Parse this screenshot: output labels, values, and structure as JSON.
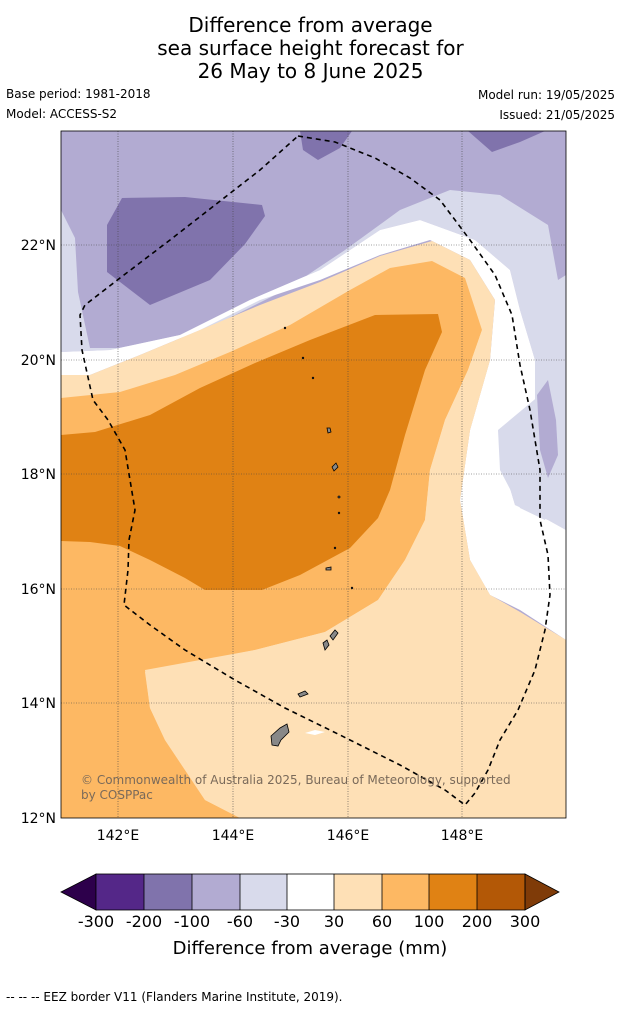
{
  "title": {
    "line1": "Difference from average",
    "line2": "sea surface height forecast for",
    "line3": "26 May to 8 June 2025"
  },
  "meta": {
    "base_period": "Base period: 1981-2018",
    "model": "Model: ACCESS-S2",
    "model_run": "Model run: 19/05/2025",
    "issued": "Issued: 21/05/2025"
  },
  "map": {
    "lat_labels": [
      "22°N",
      "20°N",
      "18°N",
      "16°N",
      "14°N",
      "12°N"
    ],
    "lon_labels": [
      "142°E",
      "144°E",
      "146°E",
      "148°E"
    ],
    "copyright_line1": "© Commonwealth of Australia 2025, Bureau of Meteorology, supported",
    "copyright_line2": "by COSPPac"
  },
  "colorbar": {
    "ticks": [
      "-300",
      "-200",
      "-100",
      "-60",
      "-30",
      "30",
      "60",
      "100",
      "200",
      "300"
    ],
    "label": "Difference from average (mm)",
    "colors": {
      "lt_neg300": "#2d004b",
      "n300_n200": "#542788",
      "n200_n100": "#8073ac",
      "n100_n60": "#b2abd2",
      "n60_n30": "#d8daeb",
      "n30_30": "#ffffff",
      "p30_60": "#fee0b6",
      "p60_100": "#fdb863",
      "p100_200": "#e08214",
      "p200_300": "#b35806",
      "gt_300": "#7f3b08"
    }
  },
  "footnote": "--  --  -- EEZ border V11 (Flanders Marine Institute, 2019)."
}
